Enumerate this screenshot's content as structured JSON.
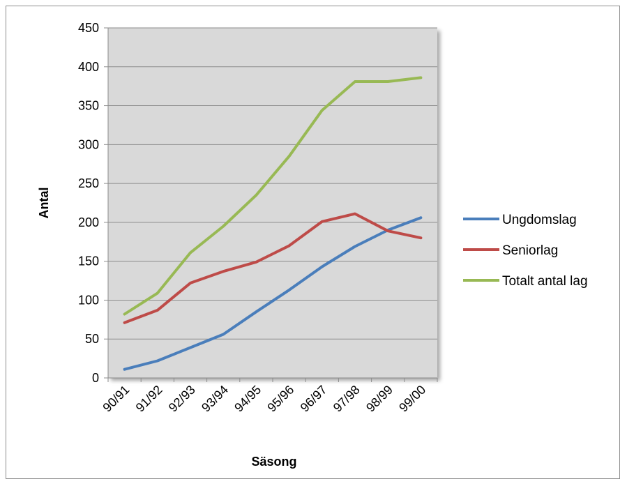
{
  "chart_data": {
    "type": "line",
    "title": "",
    "xlabel": "Säsong",
    "ylabel": "Antal",
    "ylim": [
      0,
      450
    ],
    "yticks": [
      0,
      50,
      100,
      150,
      200,
      250,
      300,
      350,
      400,
      450
    ],
    "categories": [
      "90/91",
      "91/92",
      "92/93",
      "93/94",
      "94/95",
      "95/96",
      "96/97",
      "97/98",
      "98/99",
      "99/00"
    ],
    "grid": true,
    "legend_position": "right",
    "series": [
      {
        "name": "Ungdomslag",
        "color": "#4a7ebb",
        "values": [
          11,
          22,
          39,
          56,
          85,
          113,
          143,
          169,
          190,
          206
        ]
      },
      {
        "name": "Seniorlag",
        "color": "#be4b48",
        "values": [
          71,
          87,
          122,
          137,
          149,
          170,
          201,
          211,
          189,
          180
        ]
      },
      {
        "name": "Totalt antal lag",
        "color": "#98b954",
        "values": [
          82,
          109,
          161,
          195,
          235,
          285,
          344,
          381,
          381,
          386
        ]
      }
    ]
  }
}
